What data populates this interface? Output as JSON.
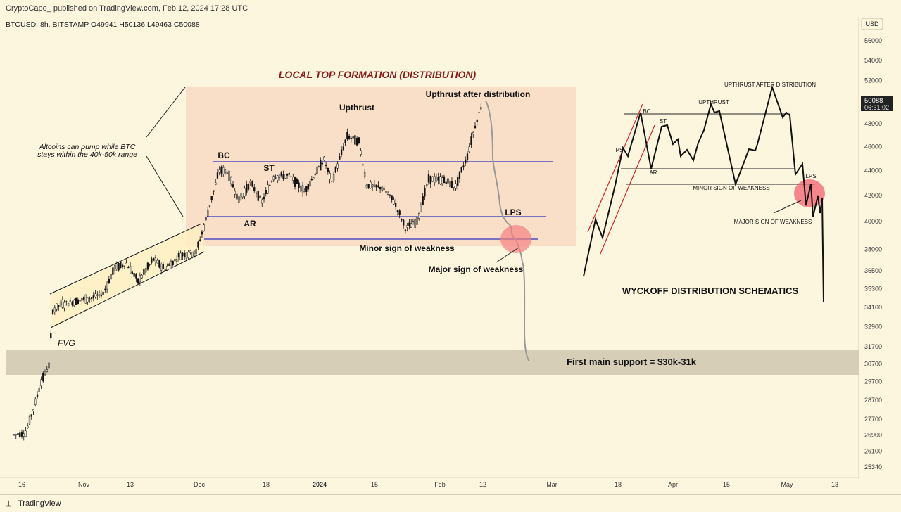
{
  "header": {
    "publisher": "CryptoCapo_ published on TradingView.com, Feb 12, 2024 17:28 UTC"
  },
  "chart_info": {
    "symbol": "BTCUSD, 8h, BITSTAMP  O49941  H50136  L49463  C50088"
  },
  "footer": {
    "logo": "⟂",
    "brand": "TradingView"
  },
  "price_axis": {
    "currency": "USD",
    "last_price": "50088",
    "countdown": "06:31:02",
    "ticks": [
      "56000",
      "54000",
      "52000",
      "50000",
      "48000",
      "46000",
      "44000",
      "42000",
      "40000",
      "38000",
      "36500",
      "35300",
      "34100",
      "32900",
      "31700",
      "30700",
      "29700",
      "28700",
      "27700",
      "26900",
      "26100",
      "25340"
    ]
  },
  "time_axis": {
    "ticks": [
      "16",
      "Nov",
      "13",
      "Dec",
      "18",
      "2024",
      "15",
      "Feb",
      "12",
      "Mar",
      "18",
      "Apr",
      "15",
      "May",
      "13"
    ]
  },
  "annotations": {
    "title": "LOCAL TOP FORMATION (DISTRIBUTION)",
    "bc": "BC",
    "st": "ST",
    "ar": "AR",
    "upthrust": "Upthrust",
    "utad": "Upthrust after distribution",
    "lps": "LPS",
    "minor": "Minor sign of weakness",
    "major": "Major sign of weakness",
    "fvg": "FVG",
    "alt_line1": "Altcoins can pump while BTC",
    "alt_line2": "stays within the 40k-50k range",
    "support": "First main support = $30k-31k"
  },
  "schematic": {
    "title": "WYCKOFF DISTRIBUTION SCHEMATICS",
    "ps": "PS",
    "bc": "BC",
    "st": "ST",
    "ar": "AR",
    "upthrust": "UPTHRUST",
    "utad": "UPTHRUST AFTER DISTRIBUTION",
    "lps": "LPS",
    "minor": "MINOR SIGN OF WEAKNESS",
    "major": "MAJOR SIGN OF WEAKNESS"
  },
  "colors": {
    "background": "#fdf6df",
    "candle_up": "#111111",
    "candle_down": "#111111",
    "range_box": "#f9d9c2",
    "support_band": "#cfc7b0",
    "level_lines": "#2f2fbf",
    "title_red": "#8b1a1a",
    "projection": "#999999",
    "highlight": "#f28080",
    "channel": "#fff0c0"
  },
  "chart_data": {
    "type": "candlestick",
    "title": "",
    "series": [
      {
        "name": "BTCUSD",
        "points": [
          {
            "t": "2023-10-14",
            "c": 26900
          },
          {
            "t": "2023-10-17",
            "c": 27000
          },
          {
            "t": "2023-10-19",
            "c": 28200
          },
          {
            "t": "2023-10-21",
            "c": 29700
          },
          {
            "t": "2023-10-23",
            "c": 30600
          },
          {
            "t": "2023-10-24",
            "c": 33900
          },
          {
            "t": "2023-10-26",
            "c": 34300
          },
          {
            "t": "2023-10-30",
            "c": 34500
          },
          {
            "t": "2023-11-03",
            "c": 34700
          },
          {
            "t": "2023-11-06",
            "c": 35000
          },
          {
            "t": "2023-11-09",
            "c": 36700
          },
          {
            "t": "2023-11-12",
            "c": 37000
          },
          {
            "t": "2023-11-15",
            "c": 35800
          },
          {
            "t": "2023-11-19",
            "c": 37300
          },
          {
            "t": "2023-11-22",
            "c": 36600
          },
          {
            "t": "2023-11-26",
            "c": 37600
          },
          {
            "t": "2023-11-30",
            "c": 37800
          },
          {
            "t": "2023-12-02",
            "c": 39600
          },
          {
            "t": "2023-12-04",
            "c": 41800
          },
          {
            "t": "2023-12-06",
            "c": 44000
          },
          {
            "t": "2023-12-08",
            "c": 43900
          },
          {
            "t": "2023-12-11",
            "c": 41600
          },
          {
            "t": "2023-12-14",
            "c": 43000
          },
          {
            "t": "2023-12-17",
            "c": 41500
          },
          {
            "t": "2023-12-20",
            "c": 43500
          },
          {
            "t": "2023-12-24",
            "c": 43600
          },
          {
            "t": "2023-12-28",
            "c": 42300
          },
          {
            "t": "2024-01-02",
            "c": 44900
          },
          {
            "t": "2024-01-04",
            "c": 43000
          },
          {
            "t": "2024-01-08",
            "c": 46900
          },
          {
            "t": "2024-01-11",
            "c": 46400
          },
          {
            "t": "2024-01-13",
            "c": 42800
          },
          {
            "t": "2024-01-17",
            "c": 42600
          },
          {
            "t": "2024-01-20",
            "c": 41600
          },
          {
            "t": "2024-01-23",
            "c": 39500
          },
          {
            "t": "2024-01-26",
            "c": 40000
          },
          {
            "t": "2024-01-29",
            "c": 43300
          },
          {
            "t": "2024-02-02",
            "c": 43200
          },
          {
            "t": "2024-02-05",
            "c": 42700
          },
          {
            "t": "2024-02-08",
            "c": 45200
          },
          {
            "t": "2024-02-10",
            "c": 47800
          },
          {
            "t": "2024-02-12",
            "c": 50088
          }
        ]
      },
      {
        "name": "projection",
        "points": [
          {
            "t": "2024-02-13",
            "c": 48000
          },
          {
            "t": "2024-02-14",
            "c": 44800
          },
          {
            "t": "2024-02-16",
            "c": 42800
          },
          {
            "t": "2024-02-18",
            "c": 40400
          },
          {
            "t": "2024-02-20",
            "c": 39400
          },
          {
            "t": "2024-02-22",
            "c": 38900
          },
          {
            "t": "2024-02-24",
            "c": 37300
          },
          {
            "t": "2024-02-25",
            "c": 31600
          },
          {
            "t": "2024-02-26",
            "c": 30800
          }
        ]
      }
    ],
    "levels": [
      {
        "label": "BC",
        "value": 44700
      },
      {
        "label": "AR",
        "value": 40300
      },
      {
        "label": "Minor sign of weakness",
        "value": 38600
      }
    ],
    "support_zone": [
      30000,
      31500
    ],
    "ylim": [
      25000,
      57000
    ],
    "y_scale": "log",
    "grid": false
  }
}
